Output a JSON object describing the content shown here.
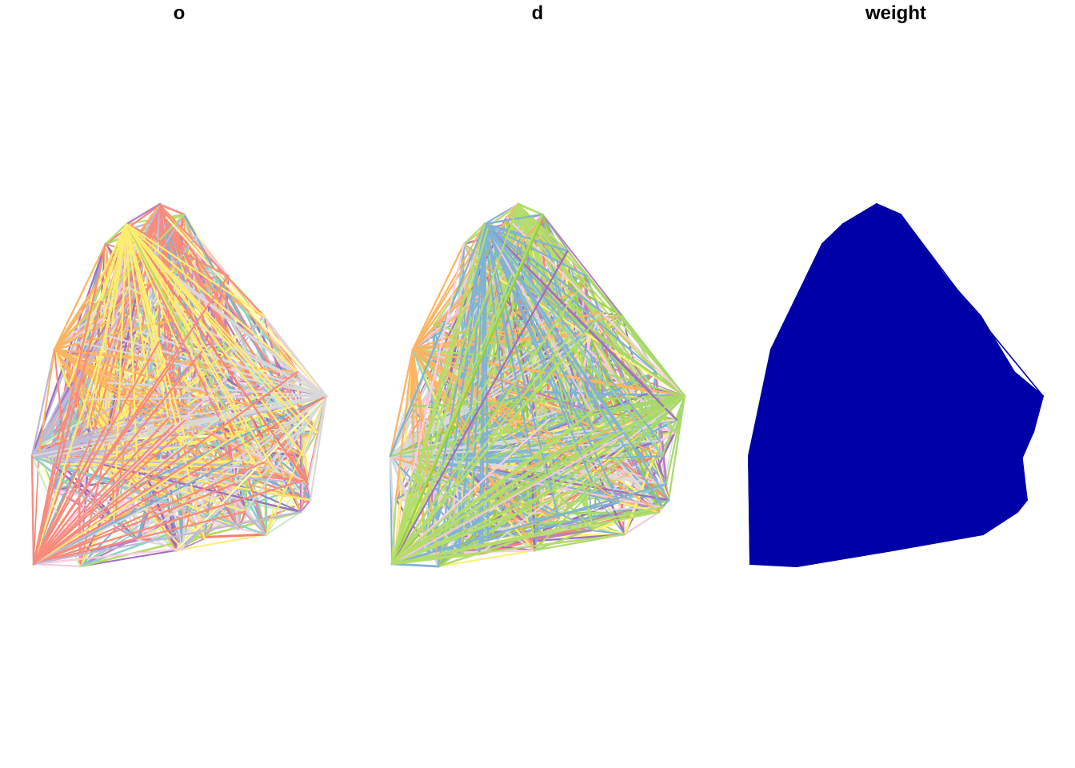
{
  "chart_data": [
    {
      "type": "network",
      "title": "o",
      "color_scheme": "categorical",
      "palette": [
        "#8DD3C7",
        "#FFFFB3",
        "#BEBADA",
        "#FB8072",
        "#80B1D3",
        "#FDB462",
        "#B3DE69",
        "#FCCDE5",
        "#D9D9D9",
        "#BC80BD",
        "#CCEBC5",
        "#FFED6F",
        "#9E6EBD",
        "#F4C6DE",
        "#F98B7E"
      ],
      "legend": "none",
      "axes": "none"
    },
    {
      "type": "network",
      "title": "d",
      "color_scheme": "categorical",
      "palette": [
        "#FB8072",
        "#FFF176",
        "#B3DE69",
        "#80B1D3",
        "#8DD3C7",
        "#D9D9D9",
        "#BC80BD",
        "#FCCDE5",
        "#FDB462",
        "#9ACD32",
        "#F4C6DE",
        "#A6D96A",
        "#FFED6F",
        "#9E6EBD",
        "#7FB3D5"
      ],
      "legend": "none",
      "axes": "none"
    },
    {
      "type": "network",
      "title": "weight",
      "color_scheme": "single",
      "palette": [
        "#0000A8"
      ],
      "legend": "none",
      "axes": "none"
    }
  ]
}
